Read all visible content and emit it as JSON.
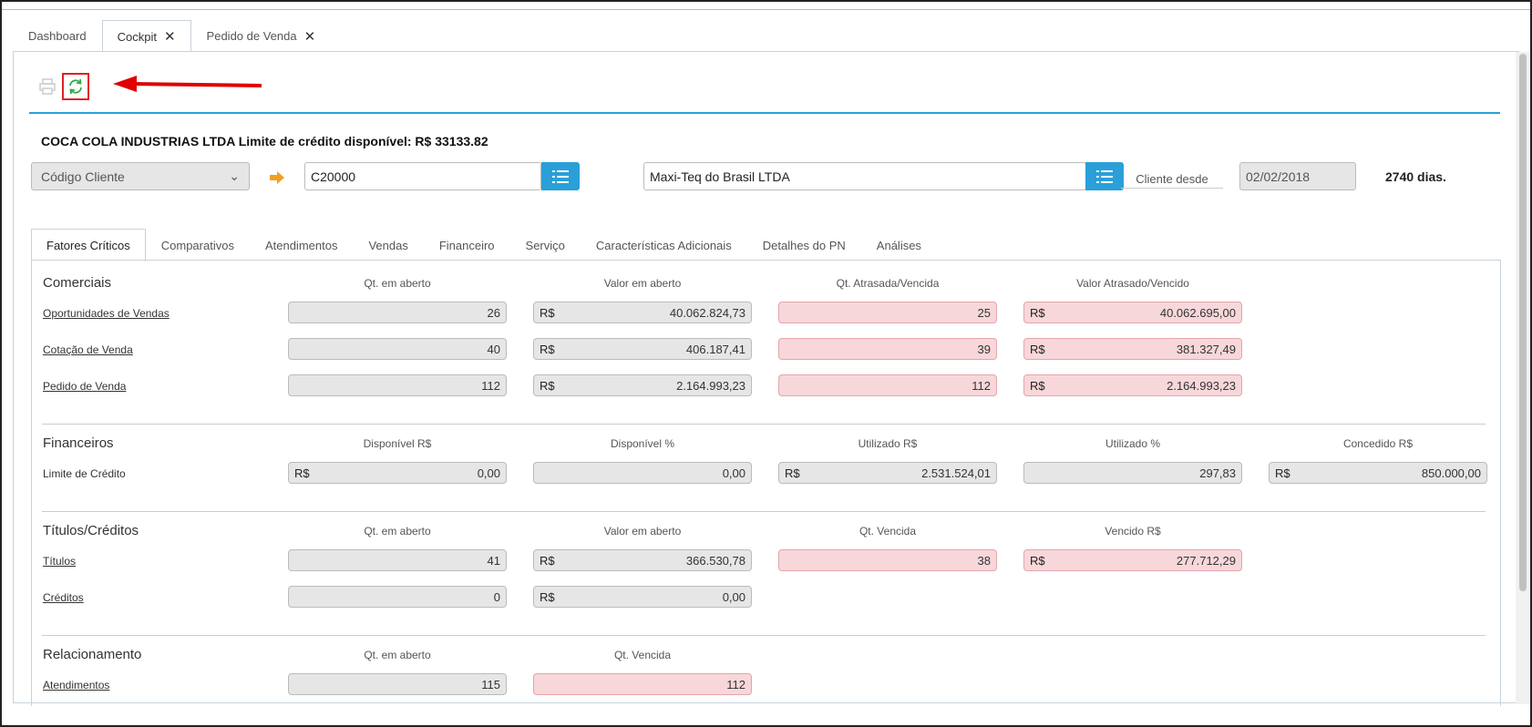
{
  "tabs": [
    {
      "label": "Dashboard"
    },
    {
      "label": "Cockpit"
    },
    {
      "label": "Pedido de Venda"
    }
  ],
  "header": {
    "credit_title": "COCA COLA INDUSTRIAS LTDA Limite de crédito disponível: R$ 33133.82",
    "select_value": "Código Cliente",
    "client_code": "C20000",
    "client_name": "Maxi-Teq do Brasil LTDA",
    "since_label": "Cliente desde",
    "since_date": "02/02/2018",
    "days": "2740 dias."
  },
  "inner_tabs": [
    "Fatores Críticos",
    "Comparativos",
    "Atendimentos",
    "Vendas",
    "Financeiro",
    "Serviço",
    "Características Adicionais",
    "Detalhes do PN",
    "Análises"
  ],
  "currency": "R$",
  "comerciais": {
    "title": "Comerciais",
    "cols": [
      "Qt. em aberto",
      "Valor em aberto",
      "Qt. Atrasada/Vencida",
      "Valor Atrasado/Vencido"
    ],
    "rows": [
      {
        "label": "Oportunidades de Vendas",
        "v": [
          "26",
          "40.062.824,73",
          "25",
          "40.062.695,00"
        ]
      },
      {
        "label": "Cotação de Venda",
        "v": [
          "40",
          "406.187,41",
          "39",
          "381.327,49"
        ]
      },
      {
        "label": "Pedido de Venda",
        "v": [
          "112",
          "2.164.993,23",
          "112",
          "2.164.993,23"
        ]
      }
    ]
  },
  "financeiros": {
    "title": "Financeiros",
    "cols": [
      "Disponível R$",
      "Disponível %",
      "Utilizado R$",
      "Utilizado %",
      "Concedido R$"
    ],
    "row": {
      "label": "Limite de Crédito",
      "v": [
        "0,00",
        "0,00",
        "2.531.524,01",
        "297,83",
        "850.000,00"
      ]
    }
  },
  "titulos": {
    "title": "Títulos/Créditos",
    "cols": [
      "Qt. em aberto",
      "Valor em aberto",
      "Qt. Vencida",
      "Vencido R$"
    ],
    "rows": [
      {
        "label": "Títulos",
        "v": [
          "41",
          "366.530,78",
          "38",
          "277.712,29"
        ]
      },
      {
        "label": "Créditos",
        "v": [
          "0",
          "0,00"
        ]
      }
    ]
  },
  "relacionamento": {
    "title": "Relacionamento",
    "cols": [
      "Qt. em aberto",
      "Qt. Vencida"
    ],
    "row": {
      "label": "Atendimentos",
      "v": [
        "115",
        "112"
      ]
    }
  }
}
